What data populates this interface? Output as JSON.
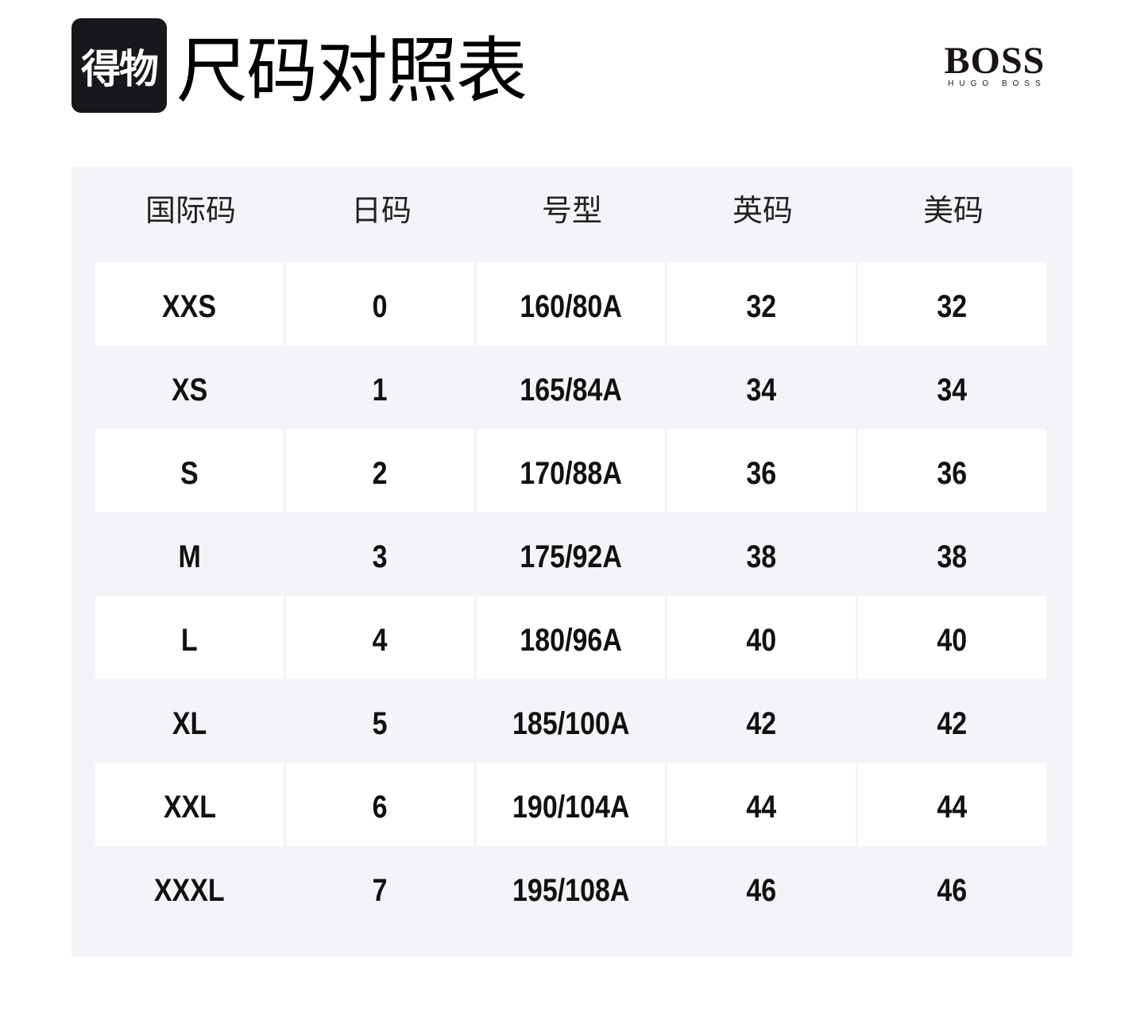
{
  "header": {
    "logo_text": "得物",
    "title": "尺码对照表",
    "brand": {
      "name": "BOSS",
      "sub": "HUGO BOSS"
    }
  },
  "table": {
    "columns": [
      "国际码",
      "日码",
      "号型",
      "英码",
      "美码"
    ],
    "rows": [
      [
        "XXS",
        "0",
        "160/80A",
        "32",
        "32"
      ],
      [
        "XS",
        "1",
        "165/84A",
        "34",
        "34"
      ],
      [
        "S",
        "2",
        "170/88A",
        "36",
        "36"
      ],
      [
        "M",
        "3",
        "175/92A",
        "38",
        "38"
      ],
      [
        "L",
        "4",
        "180/96A",
        "40",
        "40"
      ],
      [
        "XL",
        "5",
        "185/100A",
        "42",
        "42"
      ],
      [
        "XXL",
        "6",
        "190/104A",
        "44",
        "44"
      ],
      [
        "XXXL",
        "7",
        "195/108A",
        "46",
        "46"
      ]
    ]
  }
}
